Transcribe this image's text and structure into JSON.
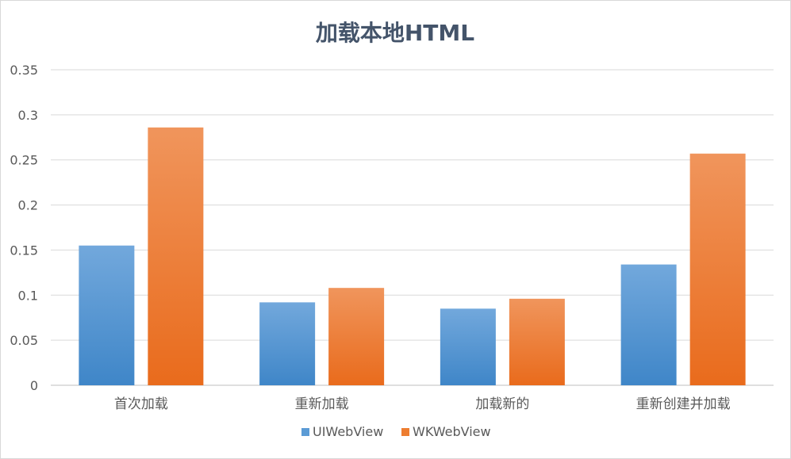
{
  "chart_data": {
    "type": "bar",
    "title": "加载本地HTML",
    "categories": [
      "首次加载",
      "重新加载",
      "加载新的",
      "重新创建并加载"
    ],
    "series": [
      {
        "name": "UIWebView",
        "values": [
          0.155,
          0.092,
          0.085,
          0.134
        ],
        "color": "#5b9bd5"
      },
      {
        "name": "WKWebView",
        "values": [
          0.286,
          0.108,
          0.096,
          0.257
        ],
        "color": "#ed7d31"
      }
    ],
    "ylim": [
      0,
      0.35
    ],
    "yticks": [
      0,
      0.05,
      0.1,
      0.15,
      0.2,
      0.25,
      0.3,
      0.35
    ],
    "ytick_labels": [
      "0",
      "0.05",
      "0.1",
      "0.15",
      "0.2",
      "0.25",
      "0.3",
      "0.35"
    ],
    "xlabel": "",
    "ylabel": "",
    "grid": true,
    "legend_position": "bottom"
  }
}
